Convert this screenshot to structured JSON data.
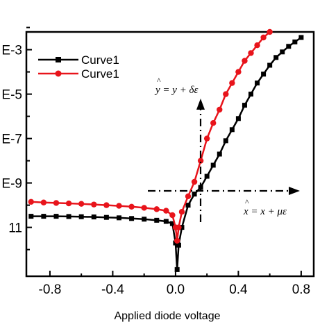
{
  "chart_data": {
    "type": "line",
    "xlabel": "Applied diode voltage",
    "ylabel": "",
    "xlim": [
      -0.95,
      0.88
    ],
    "ylim": [
      -13.2,
      -2.2
    ],
    "x_ticks": [
      "-0.8",
      "-0.4",
      "0.0",
      "0.4",
      "0.8"
    ],
    "x_tick_values": [
      -0.8,
      -0.4,
      0.0,
      0.4,
      0.8
    ],
    "y_ticks": [
      "E-3",
      "E-5",
      "E-7",
      "E-9",
      "11"
    ],
    "y_tick_values": [
      -3,
      -5,
      -7,
      -9,
      -11
    ],
    "legend_position": "top-left",
    "series": [
      {
        "name": "Curve1",
        "color": "#000000",
        "marker": "square",
        "points": [
          [
            -0.92,
            -10.5
          ],
          [
            -0.84,
            -10.5
          ],
          [
            -0.76,
            -10.5
          ],
          [
            -0.68,
            -10.51
          ],
          [
            -0.6,
            -10.52
          ],
          [
            -0.52,
            -10.53
          ],
          [
            -0.44,
            -10.55
          ],
          [
            -0.36,
            -10.57
          ],
          [
            -0.28,
            -10.6
          ],
          [
            -0.2,
            -10.63
          ],
          [
            -0.12,
            -10.68
          ],
          [
            -0.06,
            -10.73
          ],
          [
            -0.02,
            -10.83
          ],
          [
            0.0,
            -11.7
          ],
          [
            0.01,
            -12.9
          ],
          [
            0.02,
            -11.8
          ],
          [
            0.04,
            -11.0
          ],
          [
            0.08,
            -10.0
          ],
          [
            0.12,
            -9.5
          ],
          [
            0.16,
            -9.2
          ],
          [
            0.2,
            -8.7
          ],
          [
            0.24,
            -8.2
          ],
          [
            0.28,
            -7.7
          ],
          [
            0.32,
            -7.1
          ],
          [
            0.36,
            -6.6
          ],
          [
            0.4,
            -6.1
          ],
          [
            0.44,
            -5.5
          ],
          [
            0.48,
            -5.0
          ],
          [
            0.52,
            -4.5
          ],
          [
            0.56,
            -4.1
          ],
          [
            0.6,
            -3.7
          ],
          [
            0.64,
            -3.35
          ],
          [
            0.68,
            -3.1
          ],
          [
            0.72,
            -2.85
          ],
          [
            0.76,
            -2.65
          ],
          [
            0.8,
            -2.45
          ]
        ]
      },
      {
        "name": "Curve1",
        "color": "#e8141b",
        "marker": "circle",
        "points": [
          [
            -0.92,
            -9.85
          ],
          [
            -0.84,
            -9.88
          ],
          [
            -0.76,
            -9.9
          ],
          [
            -0.68,
            -9.92
          ],
          [
            -0.6,
            -9.94
          ],
          [
            -0.52,
            -9.97
          ],
          [
            -0.44,
            -10.0
          ],
          [
            -0.36,
            -10.03
          ],
          [
            -0.28,
            -10.07
          ],
          [
            -0.2,
            -10.12
          ],
          [
            -0.12,
            -10.18
          ],
          [
            -0.06,
            -10.25
          ],
          [
            -0.02,
            -10.45
          ],
          [
            0.0,
            -11.0
          ],
          [
            0.01,
            -11.6
          ],
          [
            0.02,
            -11.0
          ],
          [
            0.04,
            -10.3
          ],
          [
            0.08,
            -9.6
          ],
          [
            0.12,
            -8.95
          ],
          [
            0.16,
            -8.0
          ],
          [
            0.2,
            -7.0
          ],
          [
            0.24,
            -6.3
          ],
          [
            0.28,
            -5.7
          ],
          [
            0.32,
            -5.0
          ],
          [
            0.36,
            -4.5
          ],
          [
            0.4,
            -4.0
          ],
          [
            0.44,
            -3.5
          ],
          [
            0.48,
            -3.15
          ],
          [
            0.52,
            -2.8
          ],
          [
            0.56,
            -2.45
          ],
          [
            0.6,
            -2.2
          ]
        ]
      }
    ],
    "annotations": {
      "y_equation": {
        "hat": "^",
        "text": "y = y + δε"
      },
      "x_equation": {
        "hat": "^",
        "text": "x = x + με"
      }
    }
  }
}
